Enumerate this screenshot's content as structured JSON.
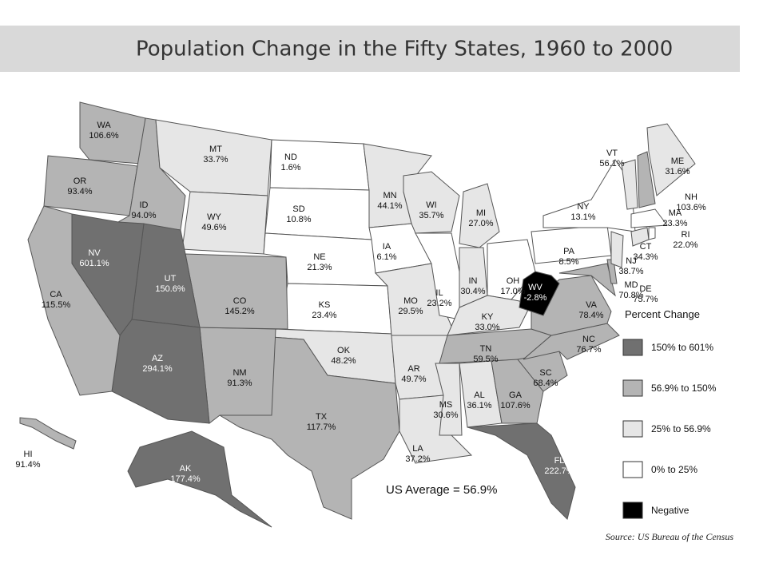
{
  "header": {
    "title": "Population Change in the Fifty States, 1960 to 2000"
  },
  "map": {
    "states": [
      {
        "abbr": "WA",
        "change": "106.6%",
        "color": "#b4b4b4"
      },
      {
        "abbr": "OR",
        "change": "93.4%",
        "color": "#b4b4b4"
      },
      {
        "abbr": "ID",
        "change": "94.0%",
        "color": "#b4b4b4"
      },
      {
        "abbr": "MT",
        "change": "33.7%",
        "color": "#e6e6e6"
      },
      {
        "abbr": "WY",
        "change": "49.6%",
        "color": "#e6e6e6"
      },
      {
        "abbr": "ND",
        "change": "1.6%",
        "color": "#ffffff"
      },
      {
        "abbr": "SD",
        "change": "10.8%",
        "color": "#ffffff"
      },
      {
        "abbr": "NE",
        "change": "21.3%",
        "color": "#ffffff"
      },
      {
        "abbr": "KS",
        "change": "23.4%",
        "color": "#ffffff"
      },
      {
        "abbr": "OK",
        "change": "48.2%",
        "color": "#e6e6e6"
      },
      {
        "abbr": "TX",
        "change": "117.7%",
        "color": "#b4b4b4"
      },
      {
        "abbr": "NM",
        "change": "91.3%",
        "color": "#b4b4b4"
      },
      {
        "abbr": "CO",
        "change": "145.2%",
        "color": "#b4b4b4"
      },
      {
        "abbr": "UT",
        "change": "150.6%",
        "color": "#707070"
      },
      {
        "abbr": "AZ",
        "change": "294.1%",
        "color": "#707070"
      },
      {
        "abbr": "NV",
        "change": "601.1%",
        "color": "#707070"
      },
      {
        "abbr": "CA",
        "change": "115.5%",
        "color": "#b4b4b4"
      },
      {
        "abbr": "MN",
        "change": "44.1%",
        "color": "#e6e6e6"
      },
      {
        "abbr": "IA",
        "change": "6.1%",
        "color": "#ffffff"
      },
      {
        "abbr": "MO",
        "change": "29.5%",
        "color": "#e6e6e6"
      },
      {
        "abbr": "AR",
        "change": "49.7%",
        "color": "#e6e6e6"
      },
      {
        "abbr": "LA",
        "change": "37.2%",
        "color": "#e6e6e6"
      },
      {
        "abbr": "WI",
        "change": "35.7%",
        "color": "#e6e6e6"
      },
      {
        "abbr": "IL",
        "change": "23.2%",
        "color": "#ffffff"
      },
      {
        "abbr": "MI",
        "change": "27.0%",
        "color": "#e6e6e6"
      },
      {
        "abbr": "IN",
        "change": "30.4%",
        "color": "#e6e6e6"
      },
      {
        "abbr": "OH",
        "change": "17.0%",
        "color": "#ffffff"
      },
      {
        "abbr": "KY",
        "change": "33.0%",
        "color": "#e6e6e6"
      },
      {
        "abbr": "TN",
        "change": "59.5%",
        "color": "#b4b4b4"
      },
      {
        "abbr": "MS",
        "change": "30.6%",
        "color": "#e6e6e6"
      },
      {
        "abbr": "AL",
        "change": "36.1%",
        "color": "#e6e6e6"
      },
      {
        "abbr": "GA",
        "change": "107.6%",
        "color": "#b4b4b4"
      },
      {
        "abbr": "FL",
        "change": "222.7%",
        "color": "#707070"
      },
      {
        "abbr": "SC",
        "change": "68.4%",
        "color": "#b4b4b4"
      },
      {
        "abbr": "NC",
        "change": "76.7%",
        "color": "#b4b4b4"
      },
      {
        "abbr": "VA",
        "change": "78.4%",
        "color": "#b4b4b4"
      },
      {
        "abbr": "WV",
        "change": "-2.8%",
        "color": "#000000"
      },
      {
        "abbr": "PA",
        "change": "8.5%",
        "color": "#ffffff"
      },
      {
        "abbr": "NY",
        "change": "13.1%",
        "color": "#ffffff"
      },
      {
        "abbr": "MD",
        "change": "70.8%",
        "color": "#b4b4b4"
      },
      {
        "abbr": "DE",
        "change": "75.7%",
        "color": "#b4b4b4"
      },
      {
        "abbr": "NJ",
        "change": "38.7%",
        "color": "#e6e6e6"
      },
      {
        "abbr": "CT",
        "change": "34.3%",
        "color": "#e6e6e6"
      },
      {
        "abbr": "RI",
        "change": "22.0%",
        "color": "#ffffff"
      },
      {
        "abbr": "MA",
        "change": "23.3%",
        "color": "#ffffff"
      },
      {
        "abbr": "VT",
        "change": "56.1%",
        "color": "#e6e6e6"
      },
      {
        "abbr": "NH",
        "change": "103.6%",
        "color": "#b4b4b4"
      },
      {
        "abbr": "ME",
        "change": "31.6%",
        "color": "#e6e6e6"
      },
      {
        "abbr": "AK",
        "change": "177.4%",
        "color": "#707070"
      },
      {
        "abbr": "HI",
        "change": "91.4%",
        "color": "#b4b4b4"
      }
    ],
    "average": "US Average = 56.9%"
  },
  "legend": {
    "title": "Percent Change",
    "items": [
      {
        "label": "150% to 601%",
        "color": "#707070"
      },
      {
        "label": "56.9% to 150%",
        "color": "#b4b4b4"
      },
      {
        "label": "25% to 56.9%",
        "color": "#e6e6e6"
      },
      {
        "label": "0% to 25%",
        "color": "#ffffff"
      },
      {
        "label": "Negative",
        "color": "#000000"
      }
    ]
  },
  "source": "Source: US Bureau of the Census"
}
